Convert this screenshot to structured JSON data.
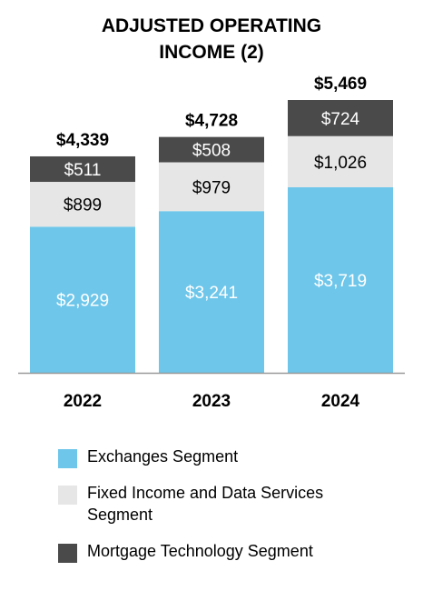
{
  "chart_data": {
    "type": "bar",
    "stacked": true,
    "title": "ADJUSTED OPERATING INCOME (2)",
    "title_lines": [
      "ADJUSTED OPERATING",
      "INCOME (2)"
    ],
    "categories": [
      "2022",
      "2023",
      "2024"
    ],
    "series": [
      {
        "name": "Exchanges Segment",
        "values": [
          2929,
          3241,
          3719
        ],
        "labels": [
          "$2,929",
          "$3,241",
          "$3,719"
        ],
        "color": "#6ec6ea",
        "label_color": "#ffffff"
      },
      {
        "name": "Fixed Income and Data Services Segment",
        "values": [
          899,
          979,
          1026
        ],
        "labels": [
          "$899",
          "$979",
          "$1,026"
        ],
        "color": "#e6e6e6",
        "label_color": "#000000"
      },
      {
        "name": "Mortgage Technology Segment",
        "values": [
          511,
          508,
          724
        ],
        "labels": [
          "$511",
          "$508",
          "$724"
        ],
        "color": "#4a4a4a",
        "label_color": "#ffffff"
      }
    ],
    "totals": [
      4339,
      4728,
      5469
    ],
    "total_labels": [
      "$4,339",
      "$4,728",
      "$5,469"
    ],
    "xlabel": "",
    "ylabel": "",
    "ylim": [
      0,
      5469
    ],
    "grid": false,
    "legend_position": "bottom"
  },
  "legend": {
    "items": [
      {
        "label": "Exchanges Segment",
        "color": "#6ec6ea"
      },
      {
        "label": "Fixed Income and Data Services\n Segment",
        "color": "#e6e6e6"
      },
      {
        "label": "Mortgage Technology Segment",
        "color": "#4a4a4a"
      }
    ]
  },
  "colors": {
    "axis": "#999999"
  }
}
